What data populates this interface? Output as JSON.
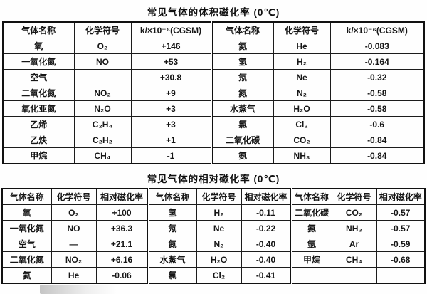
{
  "page": {
    "background_color": "#fefefe",
    "border_color": "#111111",
    "text_color": "#161616"
  },
  "table1": {
    "title": "常见气体的体积磁化率 (0℃)",
    "headers": [
      "气体名称",
      "化学符号",
      "k/×10⁻⁶(CGSM)",
      "气体名称",
      "化学符号",
      "k/×10⁻⁶(CGSM)"
    ],
    "rows": [
      [
        "氧",
        "O₂",
        "+146",
        "氦",
        "He",
        "-0.083"
      ],
      [
        "一氧化氮",
        "NO",
        "+53",
        "氢",
        "H₂",
        "-0.164"
      ],
      [
        "空气",
        "",
        "+30.8",
        "氖",
        "Ne",
        "-0.32"
      ],
      [
        "二氧化氮",
        "NO₂",
        "+9",
        "氮",
        "N₂",
        "-0.58"
      ],
      [
        "氧化亚氮",
        "N₂O",
        "+3",
        "水蒸气",
        "H₂O",
        "-0.58"
      ],
      [
        "乙烯",
        "C₂H₄",
        "+3",
        "氯",
        "Cl₂",
        "-0.6"
      ],
      [
        "乙炔",
        "C₂H₂",
        "+1",
        "二氧化碳",
        "CO₂",
        "-0.84"
      ],
      [
        "甲烷",
        "CH₄",
        "-1",
        "氨",
        "NH₃",
        "-0.84"
      ]
    ]
  },
  "table2": {
    "title": "常见气体的相对磁化率 (0℃)",
    "headers": [
      "气体名称",
      "化学符号",
      "相对磁化率",
      "气体名称",
      "化学符号",
      "相对磁化率",
      "气体名称",
      "化学符号",
      "相对磁化率"
    ],
    "rows": [
      [
        "氧",
        "O₂",
        "+100",
        "氢",
        "H₂",
        "-0.11",
        "二氧化碳",
        "CO₂",
        "-0.57"
      ],
      [
        "一氧化氮",
        "NO",
        "+36.3",
        "氖",
        "Ne",
        "-0.22",
        "氨",
        "NH₃",
        "-0.57"
      ],
      [
        "空气",
        "—",
        "+21.1",
        "氮",
        "N₂",
        "-0.40",
        "氩",
        "Ar",
        "-0.59"
      ],
      [
        "二氧化氮",
        "NO₂",
        "+6.16",
        "水蒸气",
        "H₂O",
        "-0.40",
        "甲烷",
        "CH₄",
        "-0.68"
      ],
      [
        "氦",
        "He",
        "-0.06",
        "氯",
        "Cl₂",
        "-0.41",
        "",
        "",
        ""
      ]
    ]
  }
}
